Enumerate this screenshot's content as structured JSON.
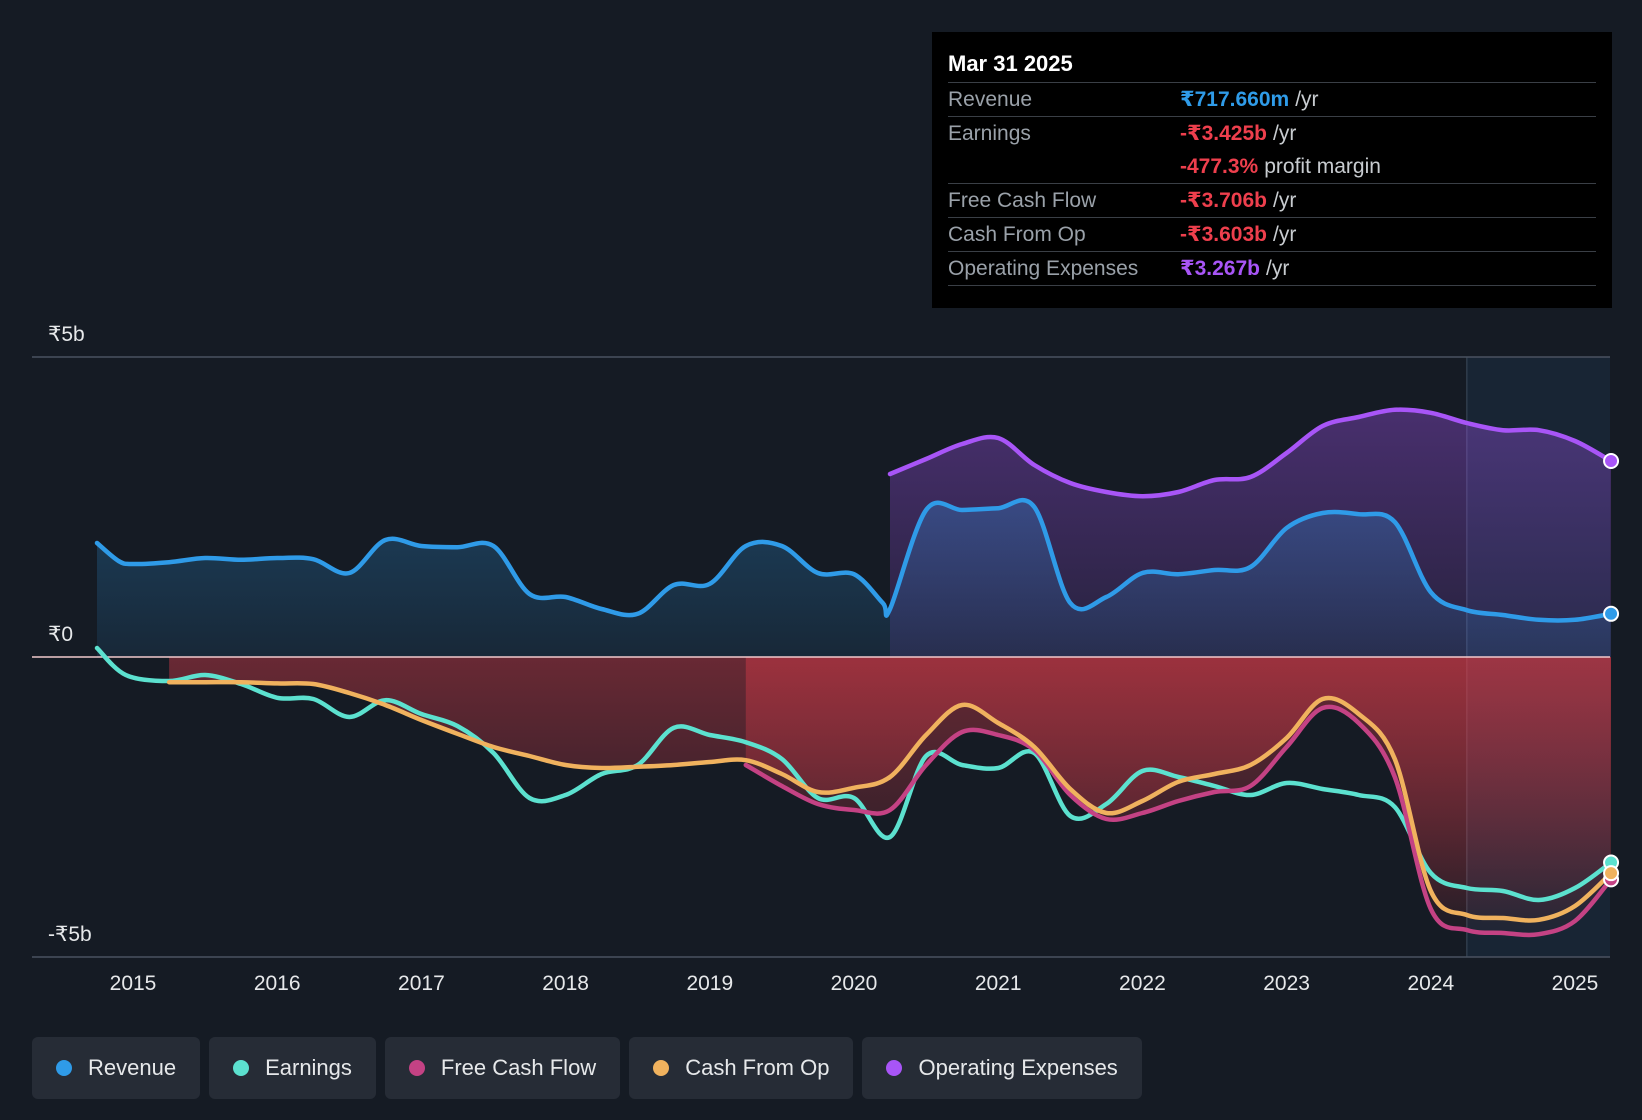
{
  "tooltip": {
    "date": "Mar 31 2025",
    "rows": [
      {
        "label": "Revenue",
        "value": "₹717.660m",
        "unit": "/yr",
        "color": "#2f9be8"
      },
      {
        "label": "Earnings",
        "value": "-₹3.425b",
        "unit": "/yr",
        "color": "#ee3f4d"
      },
      {
        "label": "",
        "value": "-477.3%",
        "unit": "profit margin",
        "color": "#ee3f4d"
      },
      {
        "label": "Free Cash Flow",
        "value": "-₹3.706b",
        "unit": "/yr",
        "color": "#ee3f4d"
      },
      {
        "label": "Cash From Op",
        "value": "-₹3.603b",
        "unit": "/yr",
        "color": "#ee3f4d"
      },
      {
        "label": "Operating Expenses",
        "value": "₹3.267b",
        "unit": "/yr",
        "color": "#a855f7"
      }
    ]
  },
  "chart_data": {
    "type": "area",
    "ylim": [
      -5,
      5
    ],
    "yunit": "₹b",
    "y_tick_labels": [
      {
        "value": 5,
        "label": "₹5b"
      },
      {
        "value": 0,
        "label": "₹0"
      },
      {
        "value": -5,
        "label": "-₹5b"
      }
    ],
    "x_ticks": [
      2015,
      2016,
      2017,
      2018,
      2019,
      2020,
      2021,
      2022,
      2023,
      2024,
      2025
    ],
    "xlim": [
      2014.74,
      2025.25
    ],
    "highlight_start": 2024.25,
    "series": [
      {
        "name": "Revenue",
        "color": "#2f9be8",
        "points": [
          [
            2014.75,
            1.9
          ],
          [
            2014.9,
            1.6
          ],
          [
            2015.0,
            1.55
          ],
          [
            2015.25,
            1.58
          ],
          [
            2015.5,
            1.65
          ],
          [
            2015.75,
            1.62
          ],
          [
            2016.0,
            1.65
          ],
          [
            2016.25,
            1.63
          ],
          [
            2016.5,
            1.4
          ],
          [
            2016.75,
            1.95
          ],
          [
            2017.0,
            1.85
          ],
          [
            2017.25,
            1.83
          ],
          [
            2017.5,
            1.85
          ],
          [
            2017.75,
            1.05
          ],
          [
            2018.0,
            1.0
          ],
          [
            2018.25,
            0.8
          ],
          [
            2018.5,
            0.72
          ],
          [
            2018.75,
            1.2
          ],
          [
            2019.0,
            1.22
          ],
          [
            2019.25,
            1.85
          ],
          [
            2019.5,
            1.85
          ],
          [
            2019.75,
            1.4
          ],
          [
            2020.0,
            1.38
          ],
          [
            2020.2,
            0.9
          ],
          [
            2020.25,
            0.8
          ],
          [
            2020.5,
            2.45
          ],
          [
            2020.75,
            2.45
          ],
          [
            2021.0,
            2.48
          ],
          [
            2021.25,
            2.5
          ],
          [
            2021.5,
            0.9
          ],
          [
            2021.75,
            1.0
          ],
          [
            2022.0,
            1.4
          ],
          [
            2022.25,
            1.38
          ],
          [
            2022.5,
            1.45
          ],
          [
            2022.75,
            1.5
          ],
          [
            2023.0,
            2.15
          ],
          [
            2023.25,
            2.4
          ],
          [
            2023.5,
            2.38
          ],
          [
            2023.75,
            2.25
          ],
          [
            2024.0,
            1.08
          ],
          [
            2024.25,
            0.78
          ],
          [
            2024.5,
            0.7
          ],
          [
            2024.75,
            0.62
          ],
          [
            2025.0,
            0.62
          ],
          [
            2025.25,
            0.72
          ]
        ]
      },
      {
        "name": "Earnings",
        "color": "#5ce1cf",
        "points": [
          [
            2014.75,
            0.15
          ],
          [
            2014.95,
            -0.3
          ],
          [
            2015.25,
            -0.4
          ],
          [
            2015.5,
            -0.3
          ],
          [
            2015.75,
            -0.45
          ],
          [
            2016.0,
            -0.68
          ],
          [
            2016.25,
            -0.7
          ],
          [
            2016.5,
            -1.0
          ],
          [
            2016.75,
            -0.72
          ],
          [
            2017.0,
            -0.95
          ],
          [
            2017.25,
            -1.15
          ],
          [
            2017.5,
            -1.6
          ],
          [
            2017.75,
            -2.35
          ],
          [
            2018.0,
            -2.3
          ],
          [
            2018.25,
            -1.95
          ],
          [
            2018.5,
            -1.8
          ],
          [
            2018.75,
            -1.18
          ],
          [
            2019.0,
            -1.3
          ],
          [
            2019.25,
            -1.42
          ],
          [
            2019.5,
            -1.7
          ],
          [
            2019.75,
            -2.35
          ],
          [
            2020.0,
            -2.35
          ],
          [
            2020.25,
            -3.0
          ],
          [
            2020.5,
            -1.65
          ],
          [
            2020.75,
            -1.8
          ],
          [
            2021.0,
            -1.85
          ],
          [
            2021.25,
            -1.6
          ],
          [
            2021.5,
            -2.65
          ],
          [
            2021.75,
            -2.45
          ],
          [
            2022.0,
            -1.9
          ],
          [
            2022.25,
            -2.0
          ],
          [
            2022.5,
            -2.15
          ],
          [
            2022.75,
            -2.3
          ],
          [
            2023.0,
            -2.1
          ],
          [
            2023.25,
            -2.2
          ],
          [
            2023.5,
            -2.3
          ],
          [
            2023.75,
            -2.5
          ],
          [
            2024.0,
            -3.6
          ],
          [
            2024.25,
            -3.85
          ],
          [
            2024.5,
            -3.9
          ],
          [
            2024.75,
            -4.05
          ],
          [
            2025.0,
            -3.85
          ],
          [
            2025.25,
            -3.425
          ]
        ]
      },
      {
        "name": "Free Cash Flow",
        "color": "#c44284",
        "points": [
          [
            2019.25,
            -1.8
          ],
          [
            2019.5,
            -2.15
          ],
          [
            2019.75,
            -2.45
          ],
          [
            2020.0,
            -2.55
          ],
          [
            2020.25,
            -2.55
          ],
          [
            2020.5,
            -1.8
          ],
          [
            2020.75,
            -1.25
          ],
          [
            2021.0,
            -1.3
          ],
          [
            2021.25,
            -1.55
          ],
          [
            2021.5,
            -2.3
          ],
          [
            2021.75,
            -2.7
          ],
          [
            2022.0,
            -2.6
          ],
          [
            2022.25,
            -2.4
          ],
          [
            2022.5,
            -2.25
          ],
          [
            2022.75,
            -2.15
          ],
          [
            2023.0,
            -1.5
          ],
          [
            2023.25,
            -0.85
          ],
          [
            2023.5,
            -1.1
          ],
          [
            2023.75,
            -2.0
          ],
          [
            2024.0,
            -4.2
          ],
          [
            2024.25,
            -4.55
          ],
          [
            2024.5,
            -4.6
          ],
          [
            2024.75,
            -4.62
          ],
          [
            2025.0,
            -4.4
          ],
          [
            2025.25,
            -3.706
          ]
        ]
      },
      {
        "name": "Cash From Op",
        "color": "#f0b25e",
        "points": [
          [
            2015.25,
            -0.42
          ],
          [
            2015.5,
            -0.42
          ],
          [
            2015.75,
            -0.42
          ],
          [
            2016.0,
            -0.44
          ],
          [
            2016.25,
            -0.45
          ],
          [
            2016.5,
            -0.6
          ],
          [
            2016.75,
            -0.8
          ],
          [
            2017.0,
            -1.05
          ],
          [
            2017.25,
            -1.28
          ],
          [
            2017.5,
            -1.5
          ],
          [
            2017.75,
            -1.65
          ],
          [
            2018.0,
            -1.8
          ],
          [
            2018.25,
            -1.85
          ],
          [
            2018.5,
            -1.83
          ],
          [
            2018.75,
            -1.8
          ],
          [
            2019.0,
            -1.75
          ],
          [
            2019.25,
            -1.72
          ],
          [
            2019.5,
            -1.95
          ],
          [
            2019.75,
            -2.25
          ],
          [
            2020.0,
            -2.18
          ],
          [
            2020.25,
            -2.0
          ],
          [
            2020.5,
            -1.3
          ],
          [
            2020.75,
            -0.8
          ],
          [
            2021.0,
            -1.1
          ],
          [
            2021.25,
            -1.5
          ],
          [
            2021.5,
            -2.2
          ],
          [
            2021.75,
            -2.6
          ],
          [
            2022.0,
            -2.4
          ],
          [
            2022.25,
            -2.08
          ],
          [
            2022.5,
            -1.95
          ],
          [
            2022.75,
            -1.8
          ],
          [
            2023.0,
            -1.35
          ],
          [
            2023.25,
            -0.7
          ],
          [
            2023.5,
            -0.95
          ],
          [
            2023.75,
            -1.7
          ],
          [
            2024.0,
            -3.9
          ],
          [
            2024.25,
            -4.3
          ],
          [
            2024.5,
            -4.35
          ],
          [
            2024.75,
            -4.38
          ],
          [
            2025.0,
            -4.15
          ],
          [
            2025.25,
            -3.603
          ]
        ]
      },
      {
        "name": "Operating Expenses",
        "color": "#a855f7",
        "points": [
          [
            2020.25,
            3.05
          ],
          [
            2020.5,
            3.3
          ],
          [
            2020.75,
            3.55
          ],
          [
            2021.0,
            3.65
          ],
          [
            2021.25,
            3.2
          ],
          [
            2021.5,
            2.9
          ],
          [
            2021.75,
            2.75
          ],
          [
            2022.0,
            2.68
          ],
          [
            2022.25,
            2.75
          ],
          [
            2022.5,
            2.95
          ],
          [
            2022.75,
            3.0
          ],
          [
            2023.0,
            3.4
          ],
          [
            2023.25,
            3.85
          ],
          [
            2023.5,
            4.0
          ],
          [
            2023.75,
            4.12
          ],
          [
            2024.0,
            4.07
          ],
          [
            2024.25,
            3.9
          ],
          [
            2024.5,
            3.78
          ],
          [
            2024.75,
            3.78
          ],
          [
            2025.0,
            3.6
          ],
          [
            2025.25,
            3.267
          ]
        ]
      }
    ]
  },
  "legend": [
    {
      "label": "Revenue",
      "color": "#2f9be8"
    },
    {
      "label": "Earnings",
      "color": "#5ce1cf"
    },
    {
      "label": "Free Cash Flow",
      "color": "#c44284"
    },
    {
      "label": "Cash From Op",
      "color": "#f0b25e"
    },
    {
      "label": "Operating Expenses",
      "color": "#a855f7"
    }
  ]
}
